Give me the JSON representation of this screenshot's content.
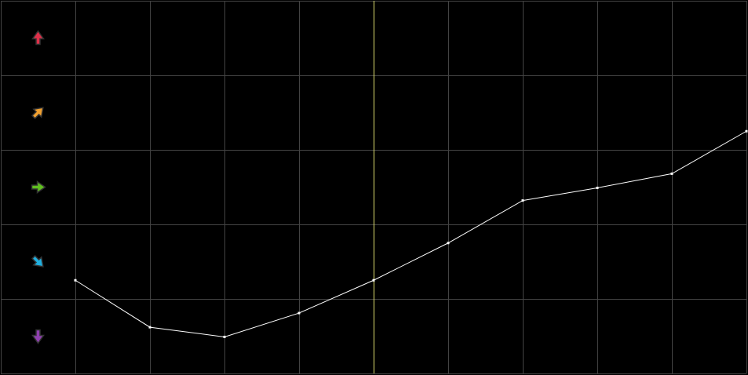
{
  "chart_data": {
    "type": "line",
    "title": "",
    "xlabel": "",
    "ylabel": "",
    "grid": true,
    "xlim": [
      0,
      10
    ],
    "ylim": [
      0,
      5
    ],
    "x": [
      1,
      2,
      3,
      4,
      5,
      6,
      7,
      8,
      9,
      10
    ],
    "values": [
      1.25,
      0.62,
      0.49,
      0.81,
      1.25,
      1.75,
      2.32,
      2.49,
      2.68,
      3.25
    ],
    "cursor_x": 5,
    "row_icons": [
      {
        "name": "arrow-up-icon",
        "angle": 0,
        "color": "#e0304a"
      },
      {
        "name": "arrow-up-right-icon",
        "angle": 45,
        "color": "#f0a030"
      },
      {
        "name": "arrow-right-icon",
        "angle": 90,
        "color": "#60c020"
      },
      {
        "name": "arrow-down-right-icon",
        "angle": 135,
        "color": "#20b0e0"
      },
      {
        "name": "arrow-down-icon",
        "angle": 180,
        "color": "#9040b0"
      }
    ],
    "colors": {
      "background": "#000000",
      "grid": "#444444",
      "line": "#ffffff",
      "cursor": "#e0e070"
    }
  }
}
